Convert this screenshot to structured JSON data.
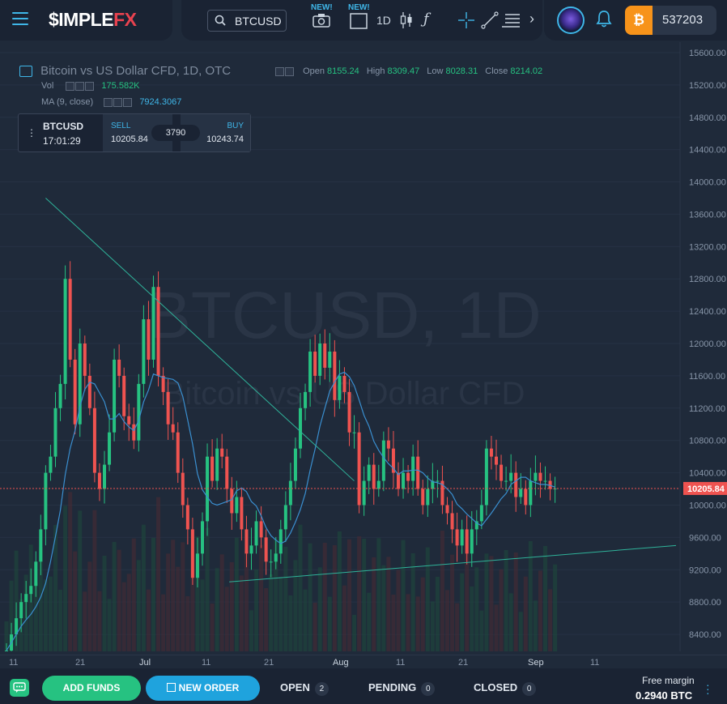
{
  "header": {
    "logo_white": "$IMPLE",
    "logo_red": "FX",
    "symbol": "BTCUSD",
    "new_tag_1": "NEW!",
    "new_tag_2": "NEW!",
    "interval": "1D",
    "balance": "537203",
    "currency_glyph": "₿"
  },
  "legend": {
    "title": "Bitcoin vs US Dollar CFD, 1D, OTC",
    "open_label": "Open",
    "open": "8155.24",
    "high_label": "High",
    "high": "8309.47",
    "low_label": "Low",
    "low": "8028.31",
    "close_label": "Close",
    "close": "8214.02",
    "vol_label": "Vol",
    "vol": "175.582K",
    "ma_label": "MA (9, close)",
    "ma": "7924.3067"
  },
  "ticket": {
    "symbol": "BTCUSD",
    "time": "17:01:29",
    "sell_label": "SELL",
    "sell": "10205.84",
    "spread": "3790",
    "buy_label": "BUY",
    "buy": "10243.74"
  },
  "watermark": {
    "line1": "BTCUSD, 1D",
    "line2": "Bitcoin vs US Dollar CFD"
  },
  "current_price": "10205.84",
  "bottom": {
    "add_funds": "ADD FUNDS",
    "new_order": "NEW ORDER",
    "open_label": "OPEN",
    "open_count": "2",
    "pending_label": "PENDING",
    "pending_count": "0",
    "closed_label": "CLOSED",
    "closed_count": "0",
    "free_margin_label": "Free margin",
    "free_margin": "0.2940 BTC"
  },
  "colors": {
    "up": "#26c281",
    "down": "#ef5350",
    "accent": "#3fb6e8",
    "bg": "#1f2a3a"
  },
  "chart_data": {
    "type": "candlestick",
    "y_ticks": [
      "15600.00",
      "15200.00",
      "14800.00",
      "14400.00",
      "14000.00",
      "13600.00",
      "13200.00",
      "12800.00",
      "12400.00",
      "12000.00",
      "11600.00",
      "11200.00",
      "10800.00",
      "10400.00",
      "10000.00",
      "9600.00",
      "9200.00",
      "8800.00",
      "8400.00"
    ],
    "x_ticks": [
      "11",
      "21",
      "Jul",
      "11",
      "21",
      "Aug",
      "11",
      "21",
      "Sep",
      "11"
    ],
    "ylim": [
      8160,
      15730
    ],
    "trendline_upper": [
      [
        8,
        13800
      ],
      [
        70,
        10300
      ]
    ],
    "trendline_lower": [
      [
        23,
        9050
      ],
      [
        70,
        9500
      ]
    ],
    "series_close": [
      8200,
      8400,
      8600,
      8800,
      8900,
      9000,
      9300,
      9700,
      10400,
      10600,
      11200,
      11500,
      12800,
      11800,
      11000,
      12000,
      11600,
      11200,
      10400,
      10200,
      10500,
      10900,
      11800,
      11600,
      11100,
      11000,
      10800,
      11500,
      12300,
      11800,
      12700,
      11600,
      11400,
      11000,
      10900,
      10400,
      10000,
      9700,
      9100,
      9400,
      9800,
      10600,
      10300,
      10700,
      10600,
      10200,
      9900,
      10100,
      9700,
      9400,
      9500,
      9800,
      9600,
      9300,
      9300,
      9400,
      9700,
      10000,
      10300,
      10700,
      11200,
      11400,
      11900,
      11600,
      12000,
      11700,
      11900,
      11300,
      11600,
      11400,
      10900,
      10900,
      10000,
      10300,
      10500,
      10200,
      10300,
      10800,
      10700,
      10400,
      10200,
      10400,
      10300,
      10600,
      10200,
      10000,
      10200,
      10300,
      10300,
      10000,
      9900,
      9700,
      9500,
      9700,
      9400,
      9700,
      9800,
      10000,
      10700,
      10600,
      10500,
      10300,
      10300,
      10400,
      10100,
      10200,
      10000,
      10300,
      10400,
      10300,
      10300,
      10200,
      10205
    ]
  }
}
